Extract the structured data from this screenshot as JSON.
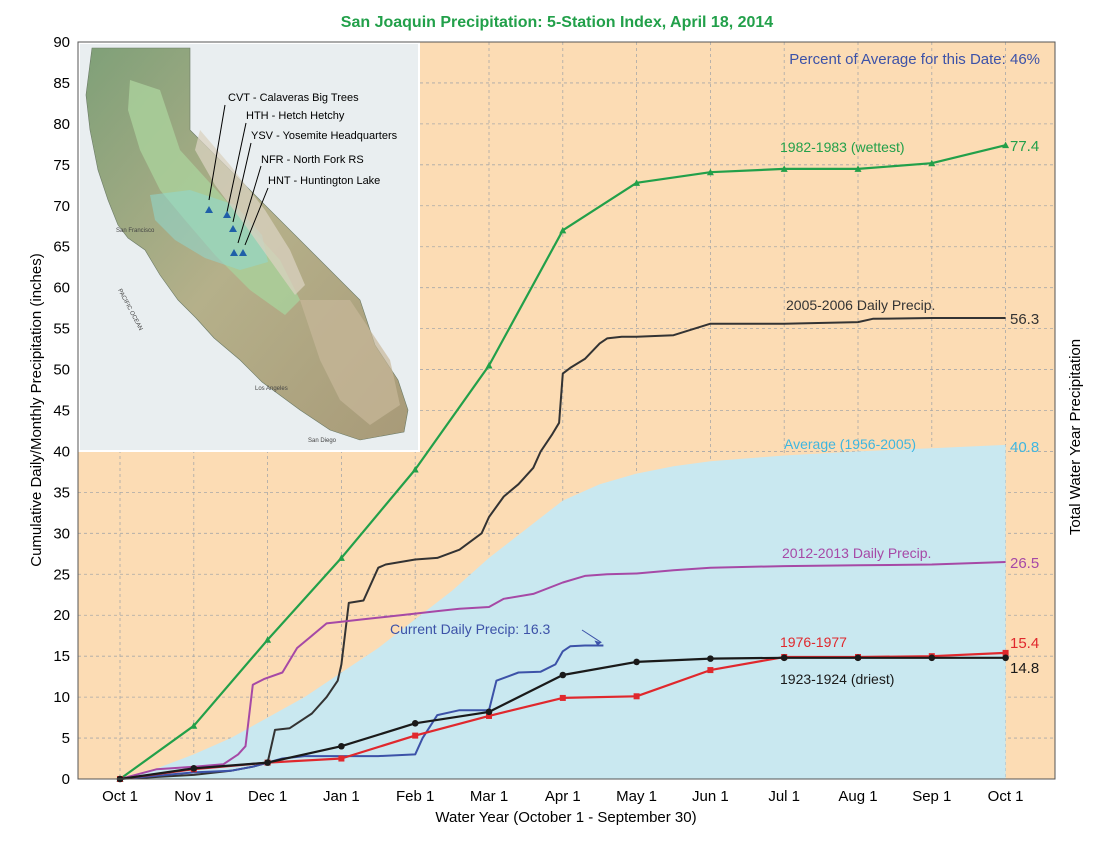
{
  "chart_data": {
    "type": "line",
    "title": "San Joaquin Precipitation: 5-Station Index, April 18, 2014",
    "subtitle": "Percent of Average for this Date: 46%",
    "xlabel": "Water Year (October 1 - September 30)",
    "ylabel": "Cumulative Daily/Monthly Precipitation (inches)",
    "ylabel_right": "Total Water Year Precipitation",
    "categories": [
      "Oct 1",
      "Nov 1",
      "Dec 1",
      "Jan 1",
      "Feb 1",
      "Mar 1",
      "Apr 1",
      "May 1",
      "Jun 1",
      "Jul 1",
      "Aug 1",
      "Sep 1",
      "Oct 1"
    ],
    "ylim": [
      0,
      90
    ],
    "yticks": [
      0,
      5,
      10,
      15,
      20,
      25,
      30,
      35,
      40,
      45,
      50,
      55,
      60,
      65,
      70,
      75,
      80,
      85,
      90
    ],
    "grid": true,
    "series": [
      {
        "name": "Average (1956-2005)",
        "kind": "area",
        "color": "#c9e8f0",
        "label_color": "#3fb6e0",
        "total": "40.8",
        "x": [
          0,
          0.5,
          1,
          1.5,
          2,
          2.5,
          3,
          3.5,
          4,
          4.5,
          5,
          5.5,
          6,
          6.5,
          7,
          7.5,
          8,
          9,
          10,
          11,
          12
        ],
        "values": [
          0,
          1.3,
          3,
          5,
          7.5,
          10,
          13,
          16,
          19.5,
          23,
          27,
          30.5,
          34,
          36,
          37.3,
          38.2,
          38.8,
          39.5,
          40,
          40.4,
          40.8
        ]
      },
      {
        "name": "1982-1983 (wettest)",
        "kind": "monthly",
        "color": "#22a04a",
        "marker": "triangle",
        "total": "77.4",
        "x": [
          0,
          1,
          2,
          3,
          4,
          5,
          6,
          7,
          8,
          9,
          10,
          11,
          12
        ],
        "values": [
          0,
          6.5,
          17,
          27,
          37.8,
          50.5,
          67,
          72.8,
          74.1,
          74.5,
          74.5,
          75.2,
          77.4
        ]
      },
      {
        "name": "2005-2006 Daily Precip.",
        "kind": "daily",
        "color": "#333333",
        "total": "56.3",
        "x": [
          0,
          0.6,
          1,
          1.5,
          1.8,
          2,
          2.1,
          2.3,
          2.6,
          2.8,
          2.95,
          3,
          3.1,
          3.3,
          3.5,
          3.6,
          4,
          4.3,
          4.6,
          4.9,
          5,
          5.2,
          5.4,
          5.6,
          5.7,
          5.85,
          5.95,
          6,
          6.1,
          6.3,
          6.5,
          6.6,
          6.8,
          7,
          7.5,
          8,
          8.5,
          9,
          10,
          10.2,
          11,
          12
        ],
        "values": [
          0,
          0.3,
          0.5,
          1,
          1.5,
          2,
          6,
          6.2,
          8,
          10,
          12,
          14,
          21.5,
          21.8,
          25.8,
          26.2,
          26.8,
          27,
          28,
          30,
          32,
          34.5,
          36,
          38,
          40,
          42,
          43.5,
          49.5,
          50.2,
          51.3,
          53.2,
          53.8,
          54,
          54,
          54.2,
          55.6,
          55.6,
          55.6,
          55.8,
          56.2,
          56.3,
          56.3
        ]
      },
      {
        "name": "2012-2013 Daily Precip.",
        "kind": "daily",
        "color": "#a649a6",
        "total": "26.5",
        "x": [
          0,
          0.5,
          1,
          1.4,
          1.6,
          1.7,
          1.8,
          1.95,
          2.2,
          2.4,
          2.6,
          2.8,
          3,
          3.3,
          3.6,
          4,
          4.3,
          4.6,
          5,
          5.2,
          5.6,
          6,
          6.3,
          6.6,
          7,
          7.5,
          8,
          9,
          10,
          11,
          12
        ],
        "values": [
          0,
          1.2,
          1.5,
          1.8,
          3,
          4,
          11.5,
          12.2,
          13,
          16,
          17.5,
          19,
          19.2,
          19.5,
          19.8,
          20.2,
          20.5,
          20.8,
          21,
          22,
          22.6,
          24,
          24.8,
          25,
          25.1,
          25.5,
          25.8,
          26,
          26.1,
          26.2,
          26.5
        ]
      },
      {
        "name": "Current Daily Precip: 16.3",
        "kind": "daily",
        "color": "#3c52a8",
        "x": [
          0,
          1,
          1.5,
          1.8,
          2.2,
          2.5,
          3,
          3.5,
          4,
          4.1,
          4.3,
          4.6,
          5,
          5.1,
          5.4,
          5.7,
          5.9,
          6,
          6.1,
          6.3,
          6.55
        ],
        "values": [
          0,
          0.8,
          1,
          1.5,
          2.5,
          2.8,
          2.8,
          2.8,
          3,
          5,
          7.8,
          8.4,
          8.4,
          12,
          13,
          13.1,
          14,
          15.6,
          16.2,
          16.3,
          16.3
        ]
      },
      {
        "name": "1976-1977",
        "kind": "monthly",
        "color": "#e0282d",
        "marker": "square",
        "total": "15.4",
        "x": [
          0,
          1,
          2,
          3,
          4,
          5,
          6,
          7,
          8,
          9,
          10,
          11,
          12
        ],
        "values": [
          0,
          1.2,
          2,
          2.5,
          5.3,
          7.7,
          9.9,
          10.1,
          13.3,
          14.9,
          14.9,
          15,
          15.4
        ]
      },
      {
        "name": "1923-1924 (driest)",
        "kind": "monthly",
        "color": "#1a1a1a",
        "marker": "circle",
        "total": "14.8",
        "x": [
          0,
          1,
          2,
          3,
          4,
          5,
          6,
          7,
          8,
          9,
          10,
          11,
          12
        ],
        "values": [
          0,
          1.3,
          2,
          4,
          6.8,
          8.2,
          12.7,
          14.3,
          14.7,
          14.8,
          14.8,
          14.8,
          14.8
        ]
      }
    ]
  },
  "map": {
    "stations": [
      {
        "code": "CVT",
        "label": "CVT - Calaveras Big Trees"
      },
      {
        "code": "HTH",
        "label": "HTH - Hetch Hetchy"
      },
      {
        "code": "YSV",
        "label": "YSV - Yosemite Headquarters"
      },
      {
        "code": "NFR",
        "label": "NFR - North Fork RS"
      },
      {
        "code": "HNT",
        "label": "HNT - Huntington Lake"
      }
    ],
    "ocean_label": "PACIFIC OCEAN",
    "city_labels": [
      "San Francisco",
      "Los Angeles",
      "San Diego"
    ]
  },
  "colors": {
    "plot_background": "#fcdcb4",
    "grid": "#a0a0a0",
    "title": "#22a04a",
    "subtitle": "#3c52a8"
  }
}
